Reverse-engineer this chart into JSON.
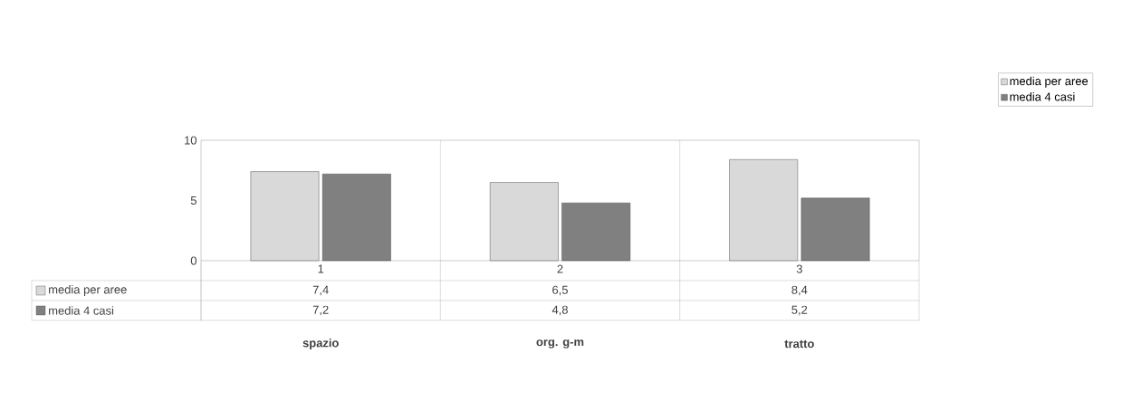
{
  "chart_data": {
    "type": "bar",
    "categories": [
      "1",
      "2",
      "3"
    ],
    "series": [
      {
        "name": "media per aree",
        "color": "#d9d9d9",
        "values": [
          7.4,
          6.5,
          8.4
        ],
        "value_labels": [
          "7,4",
          "6,5",
          "8,4"
        ]
      },
      {
        "name": "media 4 casi",
        "color": "#808080",
        "values": [
          7.2,
          4.8,
          5.2
        ],
        "value_labels": [
          "7,2",
          "4,8",
          "5,2"
        ]
      }
    ],
    "ylim": [
      0,
      10
    ],
    "yticks": [
      0,
      5,
      10
    ],
    "grid": "x",
    "legend": "top right",
    "annotations": [
      "spazio",
      "org. g-m",
      "tratto"
    ]
  }
}
